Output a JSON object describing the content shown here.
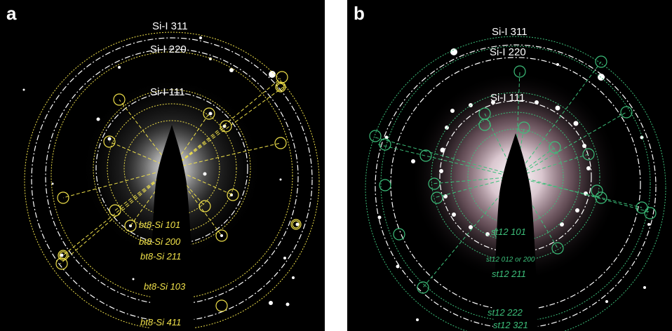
{
  "figure": {
    "panels": [
      {
        "letter": "a",
        "ring_color": "#f0e14a",
        "labels": {
          "si_311": "Si-I 311",
          "si_220": "Si-I 220",
          "si_111": "Si-I 111",
          "bt8_101": "bt8-Si 101",
          "bt8_200": "bt8-Si 200",
          "bt8_211": "bt8-Si 211",
          "bt8_103": "bt8-Si 103",
          "bt8_411": "bt8-Si 411"
        }
      },
      {
        "letter": "b",
        "ring_color": "#3cbf7a",
        "labels": {
          "si_311": "Si-I 311",
          "si_220": "Si-I 220",
          "si_111": "Si-I 111",
          "st12_101": "st12 101",
          "st12_012_200": "st12 012 or 200",
          "st12_211": "st12 211",
          "st12_222": "st12 222",
          "st12_321": "st12 321"
        }
      }
    ],
    "colors": {
      "background": "#000000",
      "si_ring": "#ffffff",
      "bt8_ring": "#f0e14a",
      "st12_ring": "#3cbf7a"
    }
  }
}
